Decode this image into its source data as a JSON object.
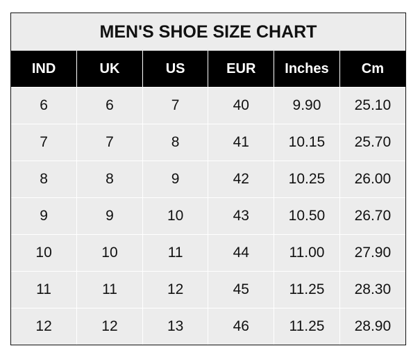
{
  "title": "MEN'S SHOE SIZE CHART",
  "headers": [
    "IND",
    "UK",
    "US",
    "EUR",
    "Inches",
    "Cm"
  ],
  "rows": [
    [
      "6",
      "6",
      "7",
      "40",
      "9.90",
      "25.10"
    ],
    [
      "7",
      "7",
      "8",
      "41",
      "10.15",
      "25.70"
    ],
    [
      "8",
      "8",
      "9",
      "42",
      "10.25",
      "26.00"
    ],
    [
      "9",
      "9",
      "10",
      "43",
      "10.50",
      "26.70"
    ],
    [
      "10",
      "10",
      "11",
      "44",
      "11.00",
      "27.90"
    ],
    [
      "11",
      "11",
      "12",
      "45",
      "11.25",
      "28.30"
    ],
    [
      "12",
      "12",
      "13",
      "46",
      "11.25",
      "28.90"
    ]
  ],
  "colors": {
    "header_bg": "#000000",
    "header_text": "#ffffff",
    "cell_bg": "#ececec"
  }
}
